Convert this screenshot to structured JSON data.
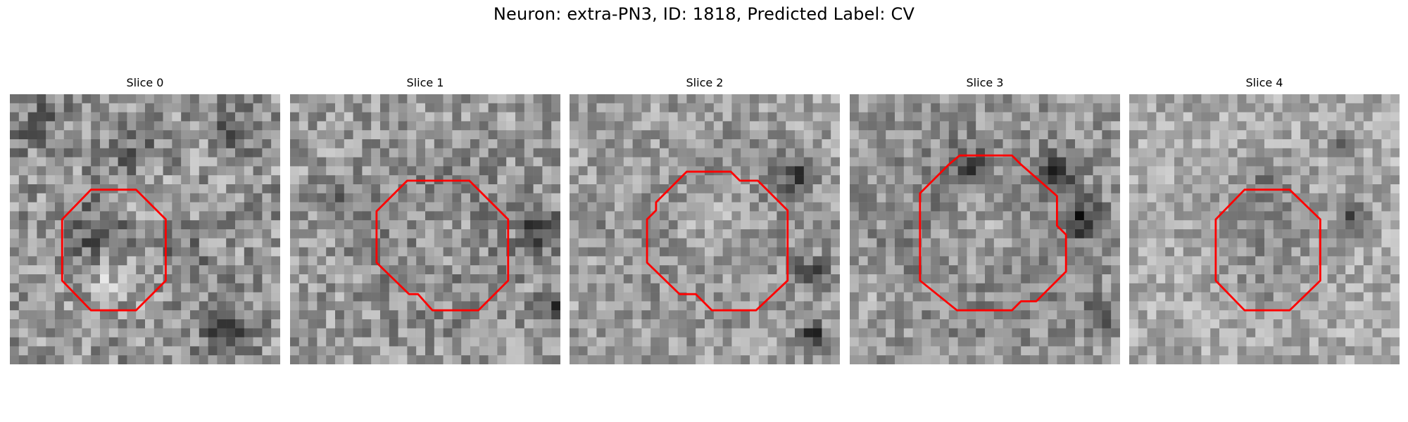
{
  "figure": {
    "title": "Neuron: extra-PN3, ID: 1818, Predicted Label: CV"
  },
  "panels": [
    {
      "title": "Slice 0"
    },
    {
      "title": "Slice 1"
    },
    {
      "title": "Slice 2"
    },
    {
      "title": "Slice 3"
    },
    {
      "title": "Slice 4"
    }
  ],
  "colors": {
    "contour": "#ff0000",
    "background": "#ffffff"
  }
}
